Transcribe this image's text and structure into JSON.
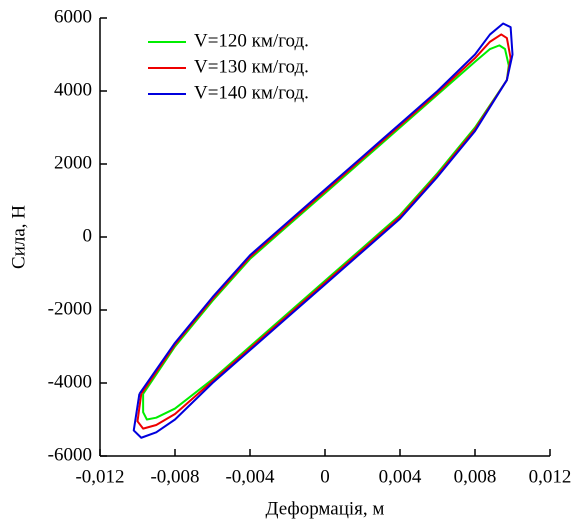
{
  "chart_data": {
    "type": "line",
    "ylabel": "Сила, Н",
    "xlabel": "Деформація, м",
    "xlim": [
      -0.012,
      0.012
    ],
    "ylim": [
      -6000,
      6000
    ],
    "xticks": [
      {
        "value": -0.012,
        "label": "-0,012"
      },
      {
        "value": -0.008,
        "label": "-0,008"
      },
      {
        "value": -0.004,
        "label": "-0,004"
      },
      0,
      {
        "value": 0.004,
        "label": "0,004"
      },
      {
        "value": 0.008,
        "label": "0,008"
      },
      {
        "value": 0.012,
        "label": "0,012"
      }
    ],
    "yticks": [
      -6000,
      -4000,
      -2000,
      0,
      2000,
      4000,
      6000
    ],
    "legend": "upper left",
    "series": [
      {
        "name": "V=120 км/год.",
        "color": "#00ee00",
        "x": [
          -0.0097,
          -0.008,
          -0.006,
          -0.004,
          -0.002,
          0,
          0.002,
          0.004,
          0.006,
          0.008,
          0.0088,
          0.0093,
          0.0096,
          0.0098,
          0.0097,
          0.008,
          0.006,
          0.004,
          0.002,
          0,
          -0.002,
          -0.004,
          -0.006,
          -0.008,
          -0.009,
          -0.0095,
          -0.0097,
          -0.0097
        ],
        "values": [
          -4300,
          -3000,
          -1750,
          -600,
          300,
          1200,
          2100,
          3000,
          3900,
          4800,
          5150,
          5250,
          5150,
          4700,
          4300,
          3000,
          1750,
          600,
          -300,
          -1200,
          -2100,
          -3000,
          -3900,
          -4700,
          -4950,
          -5000,
          -4800,
          -4300
        ]
      },
      {
        "name": "V=130 км/год.",
        "color": "#ee0000",
        "x": [
          -0.0098,
          -0.008,
          -0.006,
          -0.004,
          -0.002,
          0,
          0.002,
          0.004,
          0.006,
          0.008,
          0.0088,
          0.0094,
          0.0097,
          0.0099,
          0.0097,
          0.008,
          0.006,
          0.004,
          0.002,
          0,
          -0.002,
          -0.004,
          -0.006,
          -0.008,
          -0.009,
          -0.0097,
          -0.01,
          -0.0098
        ],
        "values": [
          -4300,
          -2950,
          -1700,
          -550,
          350,
          1250,
          2150,
          3050,
          3950,
          4900,
          5350,
          5550,
          5450,
          4900,
          4300,
          2950,
          1700,
          550,
          -350,
          -1250,
          -2150,
          -3050,
          -3950,
          -4850,
          -5150,
          -5250,
          -5050,
          -4300
        ]
      },
      {
        "name": "V=140 км/год.",
        "color": "#0000dd",
        "x": [
          -0.0099,
          -0.008,
          -0.006,
          -0.004,
          -0.002,
          0,
          0.002,
          0.004,
          0.006,
          0.008,
          0.0088,
          0.0095,
          0.0099,
          0.01,
          0.0097,
          0.008,
          0.006,
          0.004,
          0.002,
          0,
          -0.002,
          -0.004,
          -0.006,
          -0.008,
          -0.009,
          -0.0098,
          -0.0102,
          -0.0099
        ],
        "values": [
          -4300,
          -2900,
          -1650,
          -500,
          400,
          1300,
          2200,
          3100,
          4000,
          5000,
          5550,
          5850,
          5750,
          5000,
          4300,
          2900,
          1650,
          500,
          -400,
          -1300,
          -2200,
          -3100,
          -4000,
          -5000,
          -5350,
          -5500,
          -5300,
          -4300
        ]
      }
    ]
  }
}
